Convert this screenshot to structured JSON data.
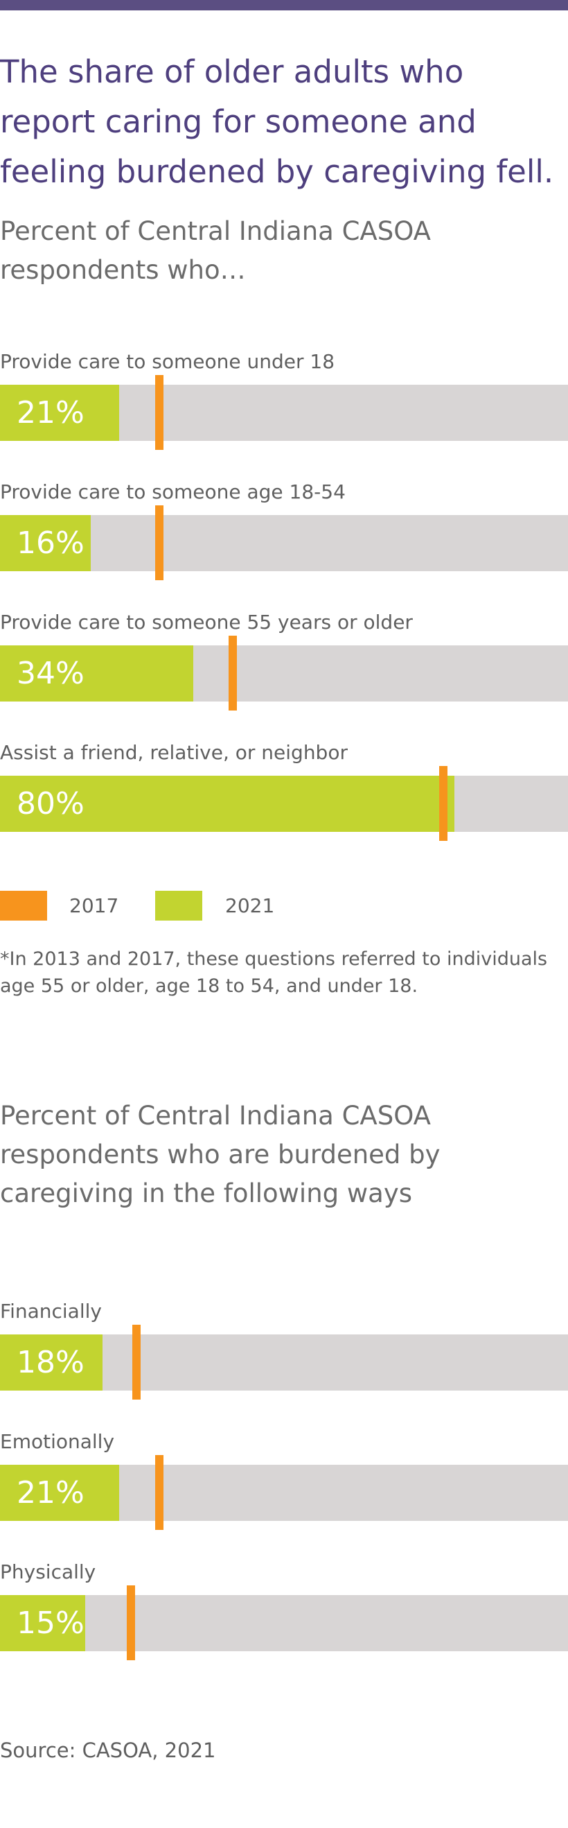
{
  "headline": "The share of older adults who report caring for someone and feeling burdened by caregiving fell.",
  "colors": {
    "topbar": "#5b4e82",
    "headline": "#4e3f7e",
    "y2017": "#f7941d",
    "y2021": "#c2d430",
    "track": "#d8d5d5"
  },
  "legend": {
    "label_2017": "2017",
    "label_2021": "2021"
  },
  "footnote": "*In 2013 and 2017, these questions referred to individuals age 55 or older, age 18 to 54, and under 18.",
  "source": "Source: CASOA, 2021",
  "chart_data": [
    {
      "type": "bar",
      "title": "Percent of Central Indiana CASOA respondents who…",
      "categories": [
        "Provide care to someone under 18",
        "Provide care to someone age 18-54",
        "Provide care to someone 55 years or older",
        "Assist a friend, relative, or neighbor"
      ],
      "series": [
        {
          "name": "2021",
          "values": [
            21,
            16,
            34,
            80
          ],
          "labels": [
            "21%",
            "16%",
            "34%",
            "80%"
          ]
        },
        {
          "name": "2017",
          "values": [
            28,
            28,
            41,
            78
          ]
        }
      ],
      "ylim": [
        0,
        100
      ]
    },
    {
      "type": "bar",
      "title": "Percent of Central Indiana CASOA respondents who are burdened by caregiving in the following ways",
      "categories": [
        "Financially",
        "Emotionally",
        "Physically"
      ],
      "series": [
        {
          "name": "2021",
          "values": [
            18,
            21,
            15
          ],
          "labels": [
            "18%",
            "21%",
            "15%"
          ]
        },
        {
          "name": "2017",
          "values": [
            24,
            28,
            23
          ]
        }
      ],
      "ylim": [
        0,
        100
      ]
    }
  ]
}
